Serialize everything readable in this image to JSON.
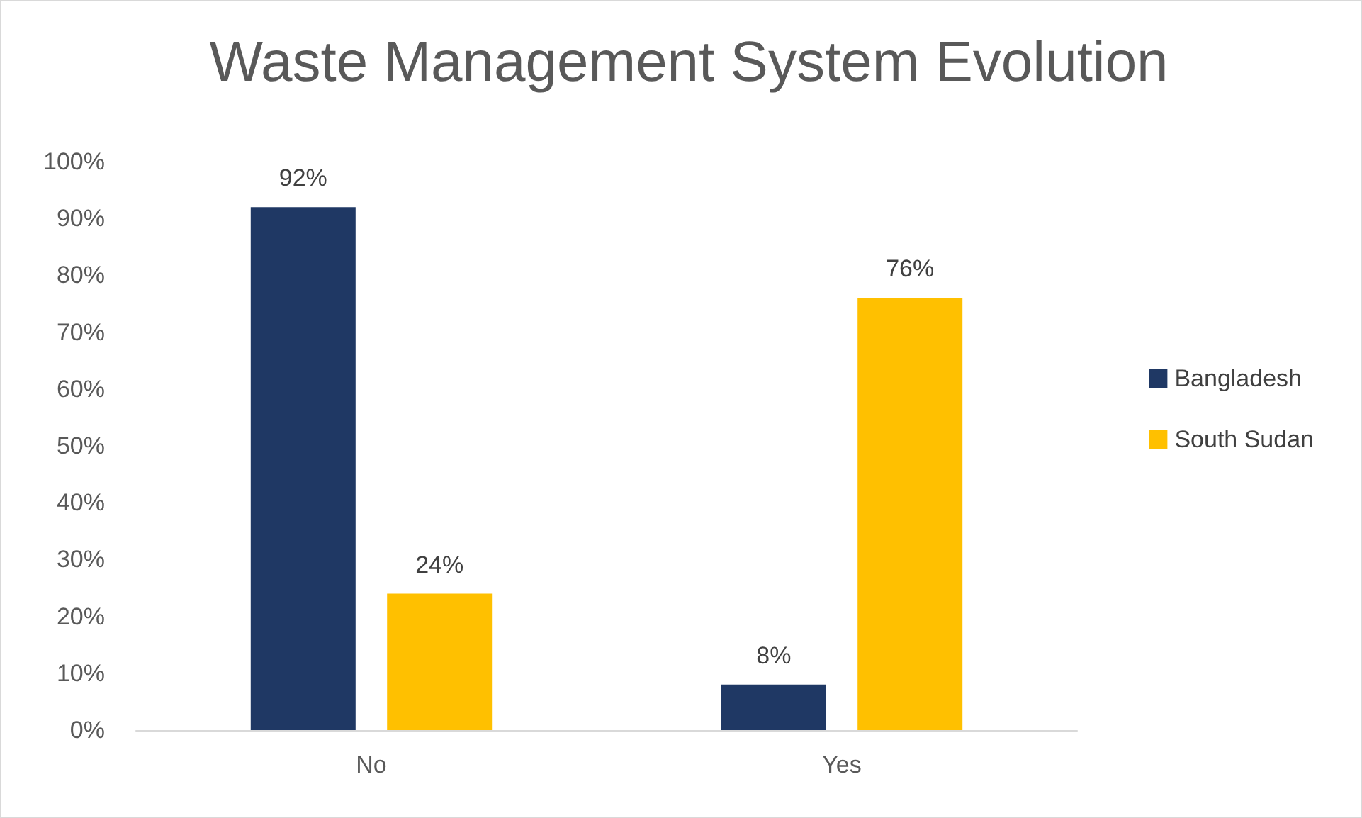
{
  "chart_data": {
    "type": "bar",
    "title": "Waste Management System Evolution",
    "categories": [
      "No",
      "Yes"
    ],
    "series": [
      {
        "name": "Bangladesh",
        "color": "#1f3864",
        "values": [
          92,
          8
        ],
        "value_labels": [
          "92%",
          "8%"
        ]
      },
      {
        "name": "South Sudan",
        "color": "#ffc000",
        "values": [
          24,
          76
        ],
        "value_labels": [
          "24%",
          "76%"
        ]
      }
    ],
    "ylim": [
      0,
      100
    ],
    "yticks": [
      {
        "value": 0,
        "label": "0%"
      },
      {
        "value": 10,
        "label": "10%"
      },
      {
        "value": 20,
        "label": "20%"
      },
      {
        "value": 30,
        "label": "30%"
      },
      {
        "value": 40,
        "label": "40%"
      },
      {
        "value": 50,
        "label": "50%"
      },
      {
        "value": 60,
        "label": "60%"
      },
      {
        "value": 70,
        "label": "70%"
      },
      {
        "value": 80,
        "label": "80%"
      },
      {
        "value": 90,
        "label": "90%"
      },
      {
        "value": 100,
        "label": "100%"
      }
    ],
    "grid": false,
    "legend": "right"
  }
}
